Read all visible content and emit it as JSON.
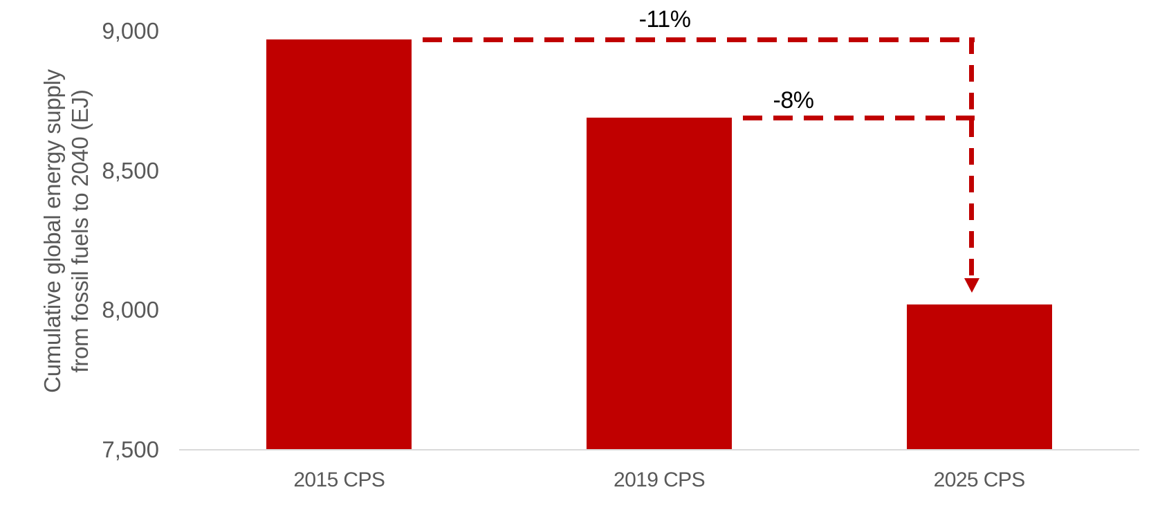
{
  "chart_data": {
    "type": "bar",
    "categories": [
      "2015 CPS",
      "2019 CPS",
      "2025 CPS"
    ],
    "values": [
      8970,
      8690,
      8020
    ],
    "title": "",
    "xlabel": "",
    "ylabel": "Cumulative global energy supply from fossil fuels to 2040 (EJ)",
    "ylabel_lines": [
      "Cumulative global energy supply",
      "from fossil fuels to 2040 (EJ)"
    ],
    "ylim": [
      7500,
      9000
    ],
    "yticks": [
      9000,
      8500,
      8000,
      7500
    ],
    "ytick_labels": [
      "9,000",
      "8,500",
      "8,000",
      "7,500"
    ],
    "grid": false,
    "legend": false,
    "annotations": [
      {
        "label": "-11%",
        "from": "2015 CPS",
        "to": "2025 CPS"
      },
      {
        "label": "-8%",
        "from": "2019 CPS",
        "to": "2025 CPS"
      }
    ]
  },
  "colors": {
    "bar": "#c00000",
    "annotation": "#c00000",
    "axis_line": "#d9d9d9",
    "tick_text": "#595959",
    "annotation_text": "#000000"
  }
}
